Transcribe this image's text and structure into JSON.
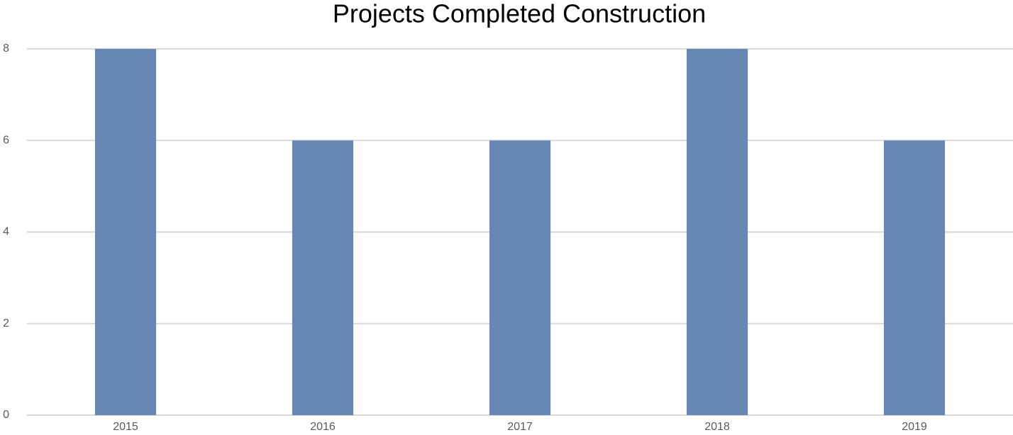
{
  "chart_data": {
    "type": "bar",
    "title": "Projects Completed Construction",
    "categories": [
      "2015",
      "2016",
      "2017",
      "2018",
      "2019"
    ],
    "values": [
      8,
      6,
      6,
      8,
      6
    ],
    "color": "#6787b5",
    "ylim": [
      0,
      8
    ],
    "yticks": [
      0,
      2,
      4,
      6,
      8
    ],
    "grid": true
  }
}
